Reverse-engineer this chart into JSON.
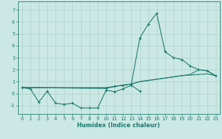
{
  "title": "",
  "xlabel": "Humidex (Indice chaleur)",
  "background_color": "#cce8e4",
  "grid_color": "#aacfcb",
  "line_color": "#1a7a6e",
  "xlim": [
    -0.5,
    23.5
  ],
  "ylim": [
    -1.7,
    7.7
  ],
  "xticks": [
    0,
    1,
    2,
    3,
    4,
    5,
    6,
    7,
    8,
    9,
    10,
    11,
    12,
    13,
    14,
    15,
    16,
    17,
    18,
    19,
    20,
    21,
    22,
    23
  ],
  "yticks": [
    -1,
    0,
    1,
    2,
    3,
    4,
    5,
    6,
    7
  ],
  "series1_x": [
    0,
    1,
    2,
    3,
    4,
    5,
    6,
    7,
    8,
    9,
    10,
    11,
    12,
    13,
    14
  ],
  "series1_y": [
    0.5,
    0.4,
    -0.7,
    0.2,
    -0.8,
    -0.9,
    -0.8,
    -1.2,
    -1.2,
    -1.2,
    0.3,
    0.15,
    0.4,
    0.7,
    0.2
  ],
  "series2_x": [
    0,
    10,
    11,
    12,
    13,
    14,
    15,
    16,
    17,
    18,
    19,
    20,
    21,
    22,
    23
  ],
  "series2_y": [
    0.5,
    0.45,
    0.6,
    0.7,
    0.8,
    4.65,
    5.8,
    6.7,
    3.5,
    3.0,
    2.85,
    2.3,
    2.0,
    1.9,
    1.5
  ],
  "series3_x": [
    0,
    10,
    11,
    12,
    13,
    14,
    15,
    16,
    17,
    18,
    19,
    20,
    21,
    22,
    23
  ],
  "series3_y": [
    0.5,
    0.45,
    0.6,
    0.7,
    0.8,
    1.0,
    1.1,
    1.2,
    1.3,
    1.4,
    1.5,
    1.55,
    1.6,
    1.65,
    1.5
  ],
  "series4_x": [
    0,
    10,
    11,
    12,
    13,
    14,
    15,
    16,
    17,
    18,
    19,
    20,
    21,
    22,
    23
  ],
  "series4_y": [
    0.5,
    0.5,
    0.6,
    0.7,
    0.8,
    1.0,
    1.1,
    1.2,
    1.3,
    1.4,
    1.5,
    1.6,
    2.0,
    1.9,
    1.5
  ]
}
